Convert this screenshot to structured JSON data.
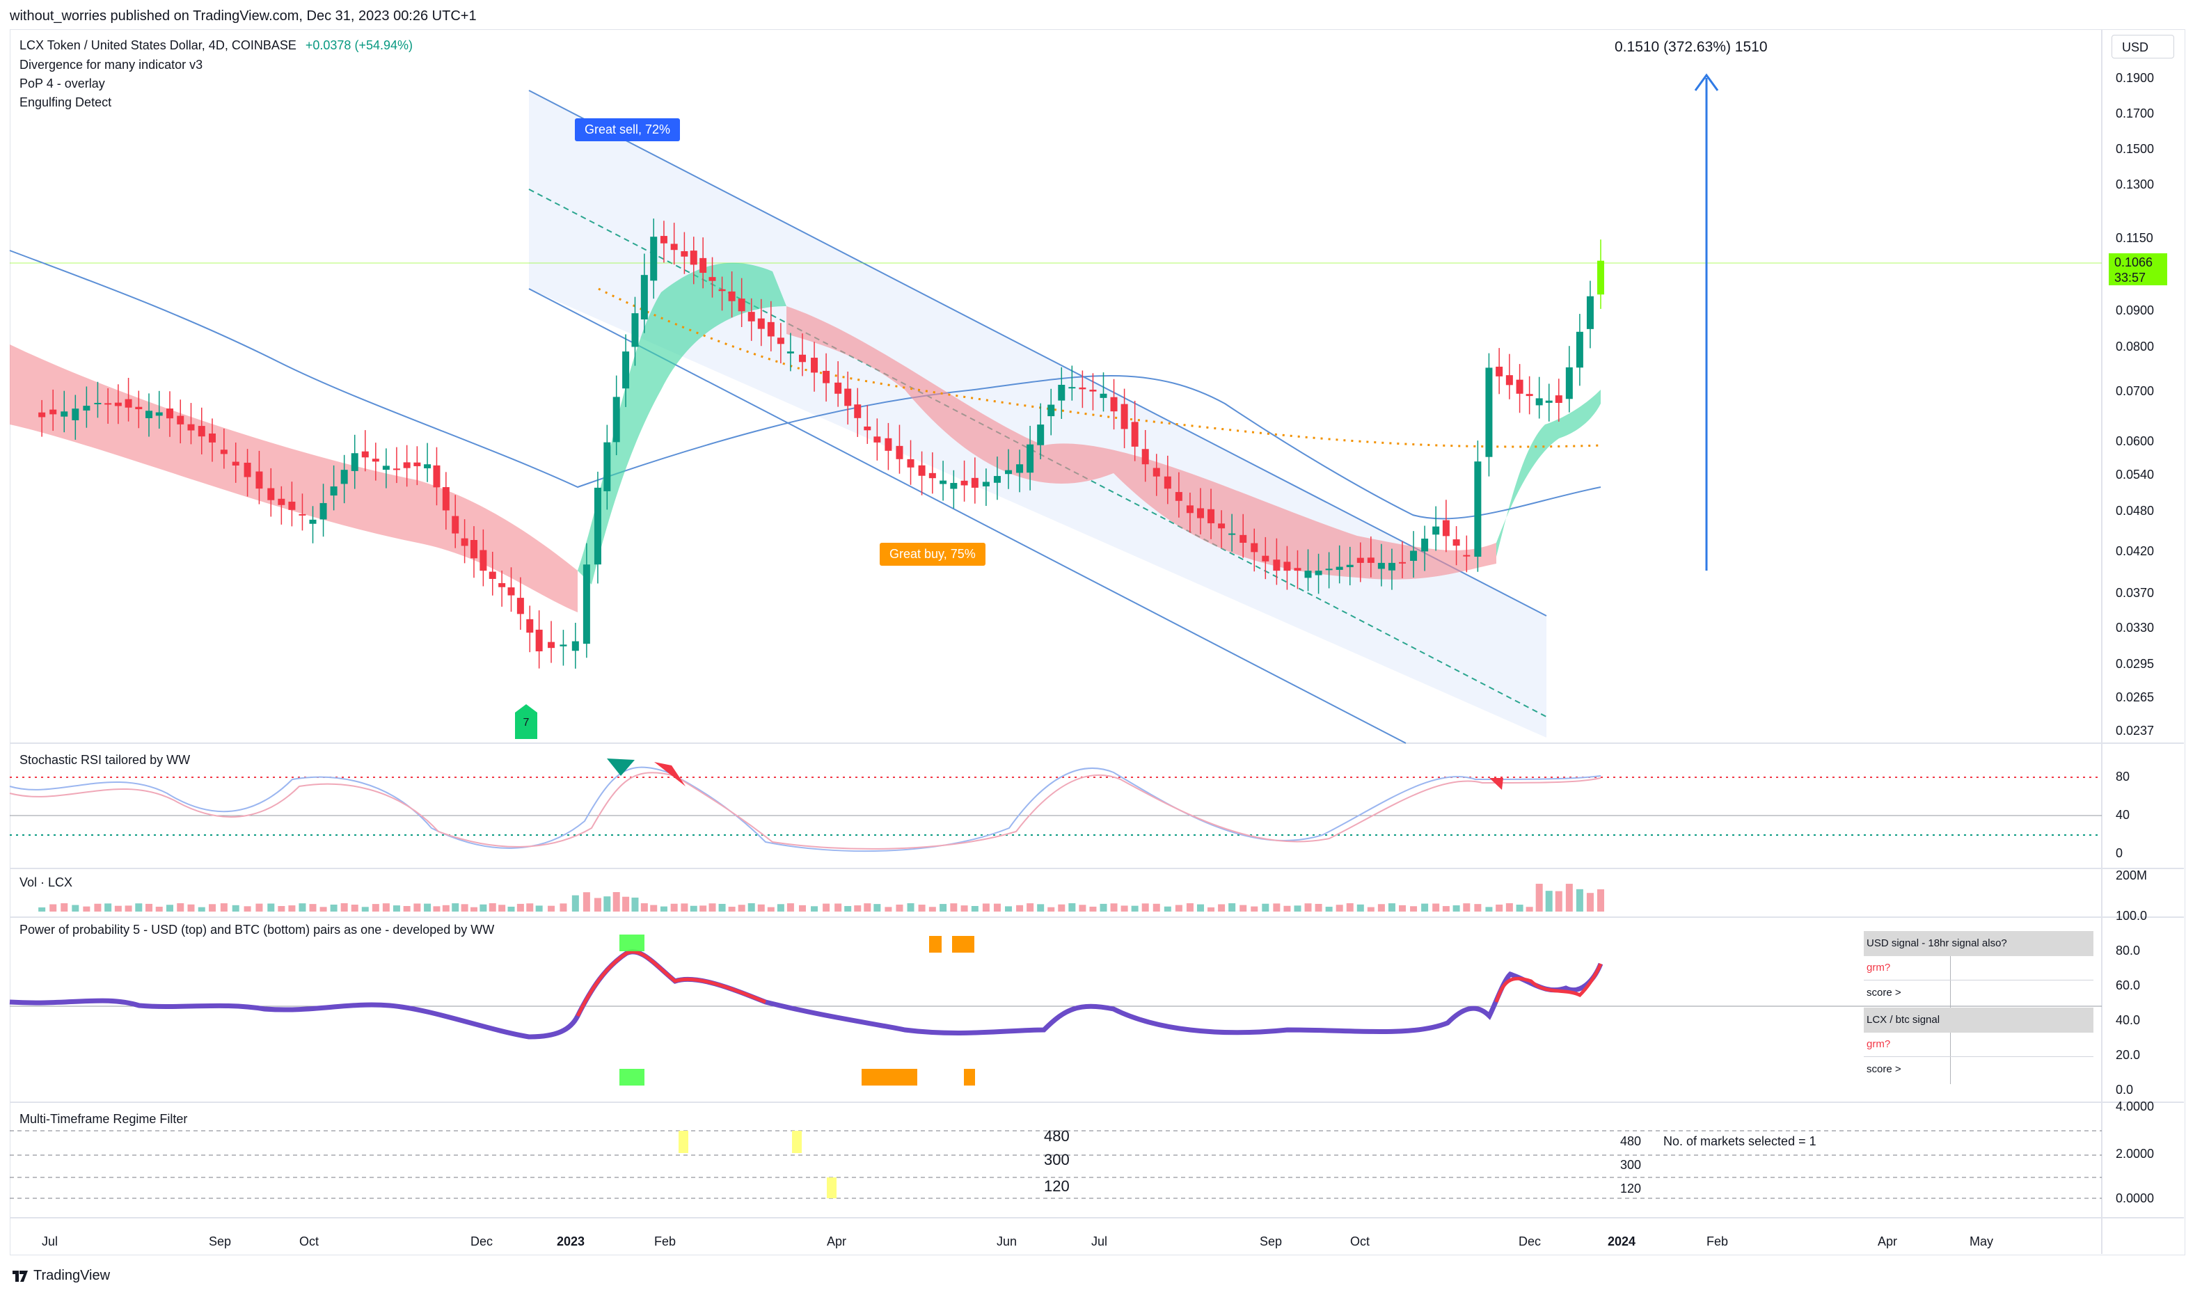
{
  "publish_line": "without_worries published on TradingView.com, Dec 31, 2023 00:26 UTC+1",
  "legend": {
    "symbol": "LCX Token / United States Dollar, 4D, COINBASE",
    "change": "+0.0378 (+54.94%)",
    "indicators": [
      "Divergence for many indicator v3",
      "PoP 4 - overlay",
      "Engulfing Detect"
    ]
  },
  "currency": "USD",
  "measure_label": "0.1510 (372.63%) 1510",
  "last_price": "0.1066",
  "countdown": "33:57",
  "labels": {
    "great_sell": "Great sell, 72%",
    "great_buy": "Great buy,  75%",
    "marker_7": "7"
  },
  "pane_titles": {
    "stoch": "Stochastic RSI tailored by WW",
    "vol": "Vol · LCX",
    "pop": "Power of probability 5 - USD (top) and BTC (bottom) pairs as one - developed by WW",
    "mtf": "Multi-Timeframe Regime Filter"
  },
  "price_axis": [
    "0.1900",
    "0.1700",
    "0.1500",
    "0.1300",
    "0.1150",
    "0.0900",
    "0.0800",
    "0.0700",
    "0.0600",
    "0.0540",
    "0.0480",
    "0.0420",
    "0.0370",
    "0.0330",
    "0.0295",
    "0.0265",
    "0.0237"
  ],
  "stoch_axis": [
    "80",
    "40",
    "0"
  ],
  "vol_axis": [
    "200M"
  ],
  "pop_axis": [
    "100.0",
    "80.0",
    "60.0",
    "40.0",
    "20.0",
    "0.0"
  ],
  "mtf_axis": [
    "4.0000",
    "2.0000",
    "0.0000"
  ],
  "mtf_levels": [
    "480",
    "300",
    "120"
  ],
  "mtf_markets": "No. of markets selected = 1",
  "signal_table": {
    "usd_header": "USD signal - 18hr signal also?",
    "usd_rows": [
      "grm?",
      "score >"
    ],
    "btc_header": "LCX / btc signal",
    "btc_rows": [
      "grm?",
      "score >"
    ]
  },
  "time_axis": [
    {
      "label": "Jul",
      "bold": false
    },
    {
      "label": "Sep",
      "bold": false
    },
    {
      "label": "Oct",
      "bold": false
    },
    {
      "label": "Dec",
      "bold": false
    },
    {
      "label": "2023",
      "bold": true
    },
    {
      "label": "Feb",
      "bold": false
    },
    {
      "label": "Apr",
      "bold": false
    },
    {
      "label": "Jun",
      "bold": false
    },
    {
      "label": "Jul",
      "bold": false
    },
    {
      "label": "Sep",
      "bold": false
    },
    {
      "label": "Oct",
      "bold": false
    },
    {
      "label": "Dec",
      "bold": false
    },
    {
      "label": "2024",
      "bold": true
    },
    {
      "label": "Feb",
      "bold": false
    },
    {
      "label": "Apr",
      "bold": false
    },
    {
      "label": "May",
      "bold": false
    }
  ],
  "brand": "TradingView",
  "colors": {
    "up": "#089981",
    "down": "#f23645",
    "accent_green": "#7cfc00",
    "blue": "#2962ff",
    "orange": "#ff9800"
  },
  "chart_data": {
    "type": "candlestick",
    "symbol": "LCXUSD",
    "timeframe": "4D",
    "scale": "log",
    "ylim": [
      0.0237,
      0.19
    ],
    "x_range": [
      "2022-06",
      "2024-05"
    ],
    "close_points": [
      [
        "2022-06-20",
        0.065
      ],
      [
        "2022-07-10",
        0.068
      ],
      [
        "2022-08-01",
        0.066
      ],
      [
        "2022-08-20",
        0.06
      ],
      [
        "2022-09-10",
        0.05
      ],
      [
        "2022-09-25",
        0.047
      ],
      [
        "2022-10-10",
        0.058
      ],
      [
        "2022-10-25",
        0.055
      ],
      [
        "2022-11-05",
        0.056
      ],
      [
        "2022-11-15",
        0.045
      ],
      [
        "2022-11-25",
        0.04
      ],
      [
        "2022-12-05",
        0.037
      ],
      [
        "2022-12-15",
        0.031
      ],
      [
        "2022-12-28",
        0.032
      ],
      [
        "2023-01-05",
        0.052
      ],
      [
        "2023-01-15",
        0.08
      ],
      [
        "2023-01-25",
        0.115
      ],
      [
        "2023-02-05",
        0.108
      ],
      [
        "2023-02-15",
        0.1
      ],
      [
        "2023-03-01",
        0.088
      ],
      [
        "2023-03-15",
        0.08
      ],
      [
        "2023-04-01",
        0.07
      ],
      [
        "2023-04-15",
        0.06
      ],
      [
        "2023-05-01",
        0.054
      ],
      [
        "2023-05-20",
        0.052
      ],
      [
        "2023-06-05",
        0.056
      ],
      [
        "2023-06-20",
        0.072
      ],
      [
        "2023-07-05",
        0.07
      ],
      [
        "2023-07-20",
        0.056
      ],
      [
        "2023-08-05",
        0.048
      ],
      [
        "2023-08-20",
        0.045
      ],
      [
        "2023-09-05",
        0.04
      ],
      [
        "2023-09-20",
        0.04
      ],
      [
        "2023-10-05",
        0.041
      ],
      [
        "2023-10-20",
        0.041
      ],
      [
        "2023-11-01",
        0.046
      ],
      [
        "2023-11-12",
        0.042
      ],
      [
        "2023-11-20",
        0.076
      ],
      [
        "2023-12-01",
        0.07
      ],
      [
        "2023-12-15",
        0.068
      ],
      [
        "2023-12-30",
        0.1066
      ]
    ],
    "overlays": [
      "regression channel",
      "moving averages",
      "cloud band"
    ],
    "last": 0.1066
  }
}
